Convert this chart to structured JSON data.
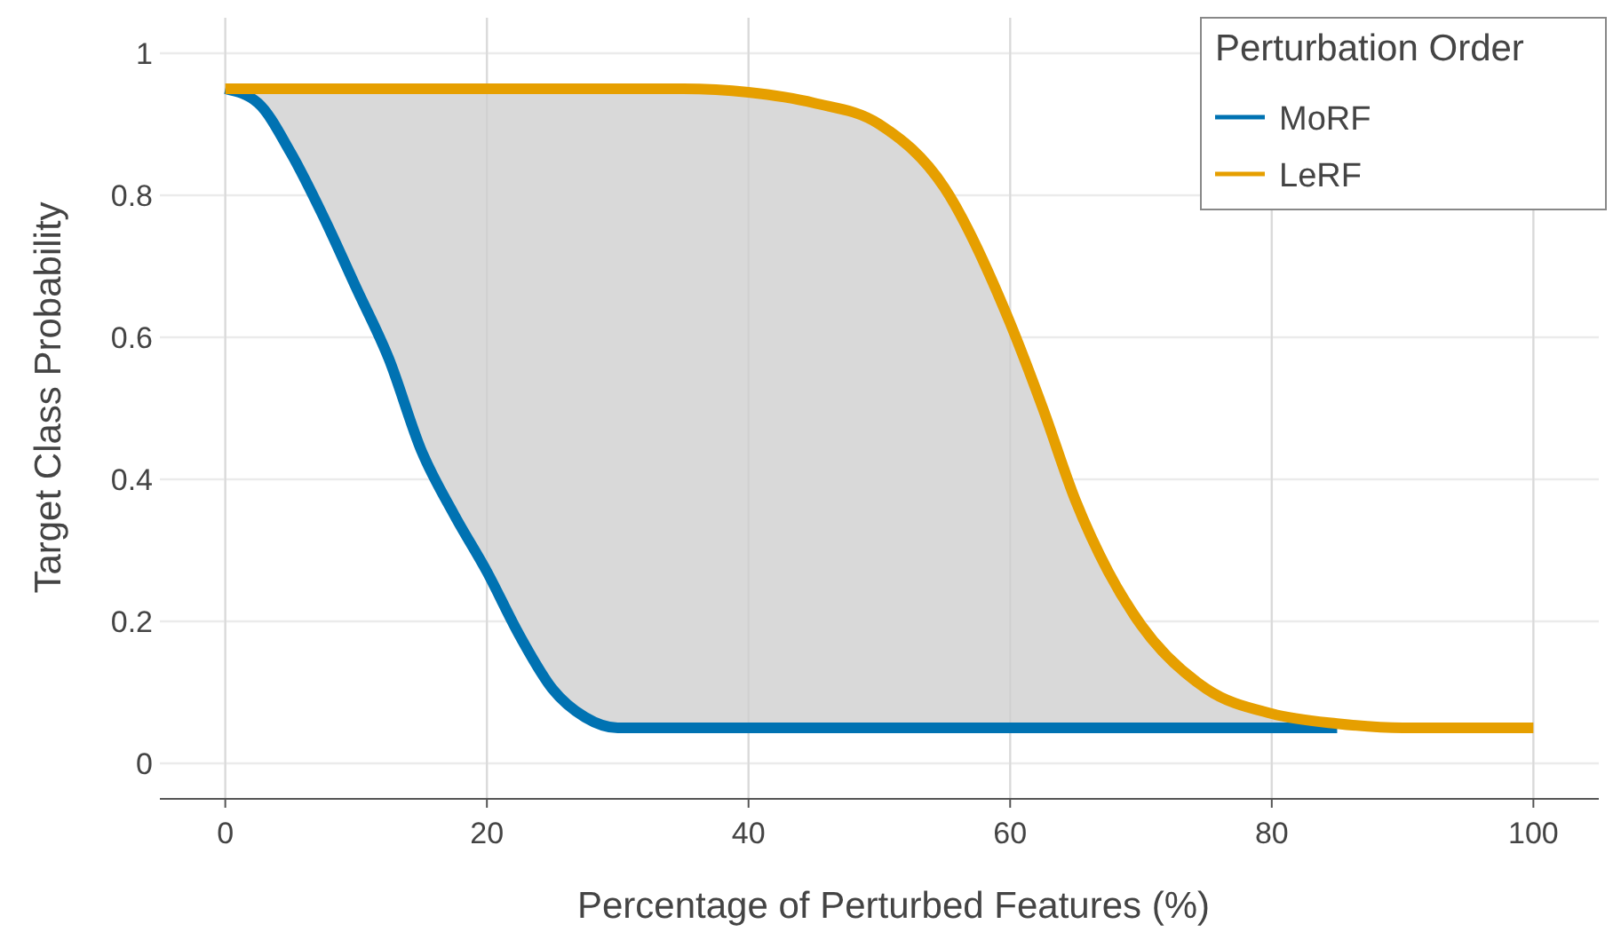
{
  "chart_data": {
    "type": "line",
    "xlabel": "Percentage of Perturbed Features (%)",
    "ylabel": "Target Class Probability",
    "legend_title": "Perturbation Order",
    "x": [
      0,
      2.5,
      5,
      7.5,
      10,
      12.5,
      15,
      17.5,
      20,
      22.5,
      25,
      27.5,
      30,
      35,
      40,
      45,
      50,
      55,
      60,
      62.5,
      65,
      67.5,
      70,
      75,
      80,
      85,
      90,
      100
    ],
    "series": [
      {
        "name": "MoRF",
        "color": "#0072b2",
        "values": [
          0.95,
          0.93,
          0.86,
          0.77,
          0.67,
          0.57,
          0.44,
          0.35,
          0.27,
          0.18,
          0.105,
          0.065,
          0.05,
          0.05,
          0.05,
          0.05,
          0.05,
          0.05,
          0.05,
          0.05,
          0.05,
          0.05,
          0.05,
          0.05,
          0.05,
          0.05,
          null,
          null
        ]
      },
      {
        "name": "LeRF",
        "color": "#e69f00",
        "values": [
          0.95,
          0.95,
          0.95,
          0.95,
          0.95,
          0.95,
          0.95,
          0.95,
          0.95,
          0.95,
          0.95,
          0.95,
          0.95,
          0.95,
          0.945,
          0.93,
          0.9,
          0.81,
          0.62,
          0.5,
          0.37,
          0.27,
          0.195,
          0.105,
          0.07,
          0.056,
          0.05,
          0.05
        ],
        "lower": [
          0.95,
          0.93,
          0.86,
          0.77,
          0.67,
          0.57,
          0.44,
          0.35,
          0.27,
          0.18,
          0.105,
          0.065,
          0.05,
          0.05,
          0.05,
          0.05,
          0.05,
          0.05,
          0.05,
          0.05,
          0.05,
          0.05,
          0.05,
          0.05,
          0.05,
          0.05,
          0.05,
          0.05
        ],
        "upper": [
          0.95,
          0.95,
          0.95,
          0.95,
          0.95,
          0.95,
          0.95,
          0.95,
          0.95,
          0.95,
          0.95,
          0.95,
          0.95,
          0.95,
          0.945,
          0.93,
          0.9,
          0.81,
          0.62,
          0.5,
          0.37,
          0.27,
          0.195,
          0.105,
          0.07,
          0.056,
          0.05,
          0.05
        ]
      }
    ],
    "xlim": [
      -5,
      105
    ],
    "ylim": [
      -0.05,
      1.05
    ],
    "xticks": [
      0,
      20,
      40,
      60,
      80,
      100
    ],
    "yticks": [
      0,
      0.2,
      0.4,
      0.6,
      0.8,
      1
    ],
    "grid": true,
    "legend": "top right",
    "line_style": "solid",
    "marker": "none"
  }
}
